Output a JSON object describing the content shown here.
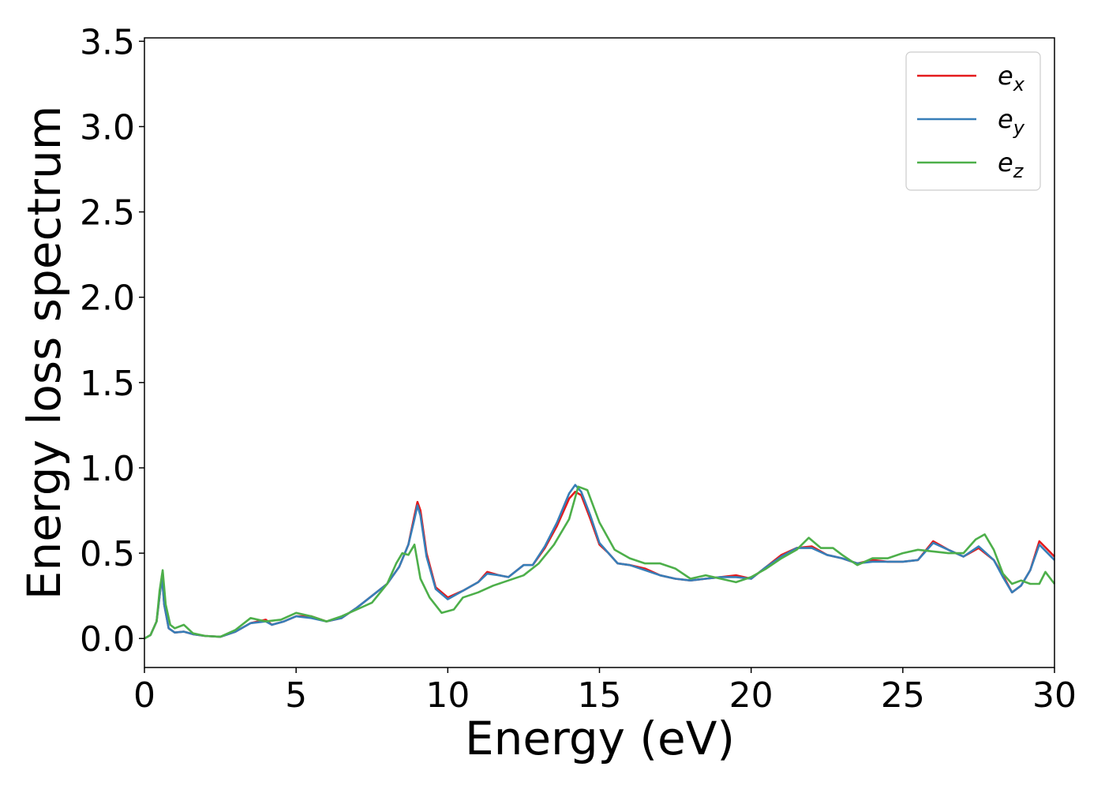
{
  "chart_data": {
    "type": "line",
    "xlabel": "Energy (eV)",
    "ylabel": "Energy loss spectrum",
    "xlim": [
      0,
      30
    ],
    "ylim": [
      -0.17,
      3.52
    ],
    "x_ticks": [
      "0",
      "5",
      "10",
      "15",
      "20",
      "25",
      "30"
    ],
    "y_ticks": [
      "0.0",
      "0.5",
      "1.0",
      "1.5",
      "2.0",
      "2.5",
      "3.0",
      "3.5"
    ],
    "x_tick_values": [
      0,
      5,
      10,
      15,
      20,
      25,
      30
    ],
    "y_tick_values": [
      0.0,
      0.5,
      1.0,
      1.5,
      2.0,
      2.5,
      3.0,
      3.5
    ],
    "grid": false,
    "legend_position": "top-right",
    "series": [
      {
        "name": "e_x",
        "legend_base": "e",
        "legend_sub": "x",
        "color": "#e41a1c",
        "points": [
          [
            0,
            0.0
          ],
          [
            0.2,
            0.02
          ],
          [
            0.4,
            0.1
          ],
          [
            0.5,
            0.25
          ],
          [
            0.58,
            0.37
          ],
          [
            0.65,
            0.2
          ],
          [
            0.8,
            0.06
          ],
          [
            1.0,
            0.035
          ],
          [
            1.3,
            0.04
          ],
          [
            1.6,
            0.025
          ],
          [
            2.0,
            0.015
          ],
          [
            2.5,
            0.01
          ],
          [
            3.0,
            0.04
          ],
          [
            3.5,
            0.09
          ],
          [
            4.0,
            0.11
          ],
          [
            4.2,
            0.08
          ],
          [
            4.6,
            0.1
          ],
          [
            5.0,
            0.13
          ],
          [
            5.5,
            0.13
          ],
          [
            6.0,
            0.1
          ],
          [
            6.5,
            0.12
          ],
          [
            7.0,
            0.18
          ],
          [
            7.5,
            0.25
          ],
          [
            8.0,
            0.32
          ],
          [
            8.4,
            0.42
          ],
          [
            8.7,
            0.55
          ],
          [
            8.9,
            0.72
          ],
          [
            9.0,
            0.8
          ],
          [
            9.1,
            0.75
          ],
          [
            9.3,
            0.5
          ],
          [
            9.6,
            0.3
          ],
          [
            10.0,
            0.24
          ],
          [
            10.5,
            0.28
          ],
          [
            11.0,
            0.33
          ],
          [
            11.3,
            0.39
          ],
          [
            11.7,
            0.37
          ],
          [
            12.0,
            0.36
          ],
          [
            12.5,
            0.43
          ],
          [
            12.8,
            0.43
          ],
          [
            13.2,
            0.53
          ],
          [
            13.6,
            0.66
          ],
          [
            14.0,
            0.82
          ],
          [
            14.2,
            0.86
          ],
          [
            14.4,
            0.84
          ],
          [
            14.7,
            0.7
          ],
          [
            15.0,
            0.55
          ],
          [
            15.3,
            0.5
          ],
          [
            15.6,
            0.44
          ],
          [
            16.0,
            0.43
          ],
          [
            16.5,
            0.41
          ],
          [
            17.0,
            0.37
          ],
          [
            17.5,
            0.35
          ],
          [
            18.0,
            0.34
          ],
          [
            18.5,
            0.35
          ],
          [
            19.0,
            0.36
          ],
          [
            19.5,
            0.37
          ],
          [
            20.0,
            0.35
          ],
          [
            20.5,
            0.42
          ],
          [
            21.0,
            0.49
          ],
          [
            21.5,
            0.53
          ],
          [
            22.0,
            0.54
          ],
          [
            22.5,
            0.49
          ],
          [
            23.0,
            0.47
          ],
          [
            23.5,
            0.44
          ],
          [
            24.0,
            0.46
          ],
          [
            24.5,
            0.45
          ],
          [
            25.0,
            0.45
          ],
          [
            25.5,
            0.46
          ],
          [
            26.0,
            0.57
          ],
          [
            26.5,
            0.52
          ],
          [
            27.0,
            0.48
          ],
          [
            27.5,
            0.53
          ],
          [
            28.0,
            0.46
          ],
          [
            28.3,
            0.37
          ],
          [
            28.6,
            0.27
          ],
          [
            28.9,
            0.31
          ],
          [
            29.2,
            0.4
          ],
          [
            29.5,
            0.57
          ],
          [
            30.0,
            0.48
          ]
        ]
      },
      {
        "name": "e_y",
        "legend_base": "e",
        "legend_sub": "y",
        "color": "#377eb8",
        "points": [
          [
            0,
            0.0
          ],
          [
            0.2,
            0.02
          ],
          [
            0.4,
            0.1
          ],
          [
            0.5,
            0.25
          ],
          [
            0.58,
            0.36
          ],
          [
            0.65,
            0.2
          ],
          [
            0.8,
            0.06
          ],
          [
            1.0,
            0.035
          ],
          [
            1.3,
            0.04
          ],
          [
            1.6,
            0.025
          ],
          [
            2.0,
            0.015
          ],
          [
            2.5,
            0.01
          ],
          [
            3.0,
            0.04
          ],
          [
            3.5,
            0.09
          ],
          [
            4.0,
            0.1
          ],
          [
            4.2,
            0.08
          ],
          [
            4.6,
            0.1
          ],
          [
            5.0,
            0.13
          ],
          [
            5.5,
            0.12
          ],
          [
            6.0,
            0.1
          ],
          [
            6.5,
            0.12
          ],
          [
            7.0,
            0.18
          ],
          [
            7.5,
            0.25
          ],
          [
            8.0,
            0.32
          ],
          [
            8.4,
            0.42
          ],
          [
            8.7,
            0.55
          ],
          [
            8.9,
            0.7
          ],
          [
            9.0,
            0.78
          ],
          [
            9.1,
            0.72
          ],
          [
            9.3,
            0.48
          ],
          [
            9.6,
            0.29
          ],
          [
            10.0,
            0.23
          ],
          [
            10.5,
            0.28
          ],
          [
            11.0,
            0.33
          ],
          [
            11.3,
            0.38
          ],
          [
            11.7,
            0.37
          ],
          [
            12.0,
            0.36
          ],
          [
            12.5,
            0.43
          ],
          [
            12.8,
            0.43
          ],
          [
            13.2,
            0.54
          ],
          [
            13.6,
            0.68
          ],
          [
            14.0,
            0.85
          ],
          [
            14.2,
            0.9
          ],
          [
            14.4,
            0.86
          ],
          [
            14.7,
            0.72
          ],
          [
            15.0,
            0.56
          ],
          [
            15.3,
            0.5
          ],
          [
            15.6,
            0.44
          ],
          [
            16.0,
            0.43
          ],
          [
            16.5,
            0.4
          ],
          [
            17.0,
            0.37
          ],
          [
            17.5,
            0.35
          ],
          [
            18.0,
            0.34
          ],
          [
            18.5,
            0.35
          ],
          [
            19.0,
            0.36
          ],
          [
            19.5,
            0.36
          ],
          [
            20.0,
            0.35
          ],
          [
            20.5,
            0.42
          ],
          [
            21.0,
            0.48
          ],
          [
            21.5,
            0.53
          ],
          [
            22.0,
            0.53
          ],
          [
            22.5,
            0.49
          ],
          [
            23.0,
            0.47
          ],
          [
            23.5,
            0.44
          ],
          [
            24.0,
            0.45
          ],
          [
            24.5,
            0.45
          ],
          [
            25.0,
            0.45
          ],
          [
            25.5,
            0.46
          ],
          [
            26.0,
            0.56
          ],
          [
            26.5,
            0.52
          ],
          [
            27.0,
            0.48
          ],
          [
            27.5,
            0.54
          ],
          [
            28.0,
            0.46
          ],
          [
            28.3,
            0.36
          ],
          [
            28.6,
            0.27
          ],
          [
            28.9,
            0.31
          ],
          [
            29.2,
            0.4
          ],
          [
            29.5,
            0.55
          ],
          [
            30.0,
            0.46
          ]
        ]
      },
      {
        "name": "e_z",
        "legend_base": "e",
        "legend_sub": "z",
        "color": "#4daf4a",
        "points": [
          [
            0,
            0.0
          ],
          [
            0.2,
            0.02
          ],
          [
            0.4,
            0.1
          ],
          [
            0.5,
            0.28
          ],
          [
            0.6,
            0.4
          ],
          [
            0.7,
            0.2
          ],
          [
            0.85,
            0.08
          ],
          [
            1.0,
            0.06
          ],
          [
            1.3,
            0.08
          ],
          [
            1.6,
            0.03
          ],
          [
            2.0,
            0.015
          ],
          [
            2.5,
            0.01
          ],
          [
            3.0,
            0.05
          ],
          [
            3.5,
            0.12
          ],
          [
            4.0,
            0.1
          ],
          [
            4.5,
            0.11
          ],
          [
            5.0,
            0.15
          ],
          [
            5.5,
            0.13
          ],
          [
            6.0,
            0.1
          ],
          [
            6.5,
            0.13
          ],
          [
            7.0,
            0.17
          ],
          [
            7.5,
            0.21
          ],
          [
            8.0,
            0.32
          ],
          [
            8.3,
            0.44
          ],
          [
            8.5,
            0.5
          ],
          [
            8.7,
            0.49
          ],
          [
            8.9,
            0.55
          ],
          [
            9.1,
            0.35
          ],
          [
            9.4,
            0.24
          ],
          [
            9.8,
            0.15
          ],
          [
            10.2,
            0.17
          ],
          [
            10.5,
            0.24
          ],
          [
            11.0,
            0.27
          ],
          [
            11.5,
            0.31
          ],
          [
            12.0,
            0.34
          ],
          [
            12.5,
            0.37
          ],
          [
            13.0,
            0.44
          ],
          [
            13.5,
            0.55
          ],
          [
            14.0,
            0.7
          ],
          [
            14.3,
            0.89
          ],
          [
            14.6,
            0.87
          ],
          [
            15.0,
            0.68
          ],
          [
            15.5,
            0.52
          ],
          [
            16.0,
            0.47
          ],
          [
            16.5,
            0.44
          ],
          [
            17.0,
            0.44
          ],
          [
            17.5,
            0.41
          ],
          [
            18.0,
            0.35
          ],
          [
            18.5,
            0.37
          ],
          [
            19.0,
            0.35
          ],
          [
            19.5,
            0.33
          ],
          [
            20.0,
            0.36
          ],
          [
            20.5,
            0.41
          ],
          [
            21.0,
            0.47
          ],
          [
            21.5,
            0.52
          ],
          [
            21.9,
            0.59
          ],
          [
            22.3,
            0.53
          ],
          [
            22.7,
            0.53
          ],
          [
            23.0,
            0.49
          ],
          [
            23.5,
            0.43
          ],
          [
            24.0,
            0.47
          ],
          [
            24.5,
            0.47
          ],
          [
            25.0,
            0.5
          ],
          [
            25.5,
            0.52
          ],
          [
            26.0,
            0.51
          ],
          [
            26.5,
            0.5
          ],
          [
            27.0,
            0.5
          ],
          [
            27.4,
            0.58
          ],
          [
            27.7,
            0.61
          ],
          [
            28.0,
            0.52
          ],
          [
            28.3,
            0.38
          ],
          [
            28.6,
            0.32
          ],
          [
            28.9,
            0.34
          ],
          [
            29.2,
            0.32
          ],
          [
            29.5,
            0.32
          ],
          [
            29.7,
            0.39
          ],
          [
            30.0,
            0.32
          ]
        ]
      }
    ]
  }
}
